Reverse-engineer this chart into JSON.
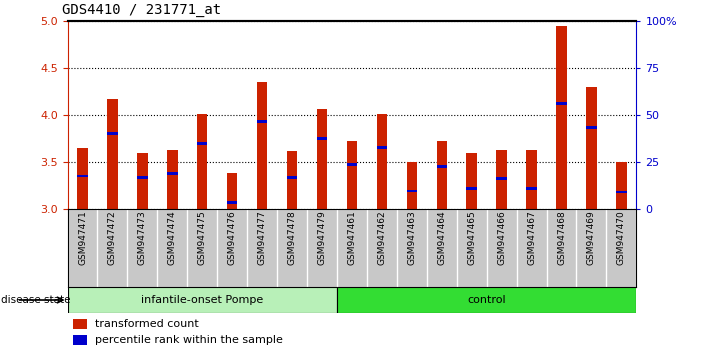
{
  "title": "GDS4410 / 231771_at",
  "samples": [
    "GSM947471",
    "GSM947472",
    "GSM947473",
    "GSM947474",
    "GSM947475",
    "GSM947476",
    "GSM947477",
    "GSM947478",
    "GSM947479",
    "GSM947461",
    "GSM947462",
    "GSM947463",
    "GSM947464",
    "GSM947465",
    "GSM947466",
    "GSM947467",
    "GSM947468",
    "GSM947469",
    "GSM947470"
  ],
  "bar_values": [
    3.65,
    4.17,
    3.6,
    3.63,
    4.01,
    3.38,
    4.35,
    3.62,
    4.06,
    3.72,
    4.01,
    3.5,
    3.72,
    3.6,
    3.63,
    3.63,
    4.95,
    4.3,
    3.5
  ],
  "blue_dot_values": [
    3.35,
    3.8,
    3.33,
    3.38,
    3.7,
    3.07,
    3.93,
    3.33,
    3.75,
    3.47,
    3.65,
    3.19,
    3.45,
    3.22,
    3.32,
    3.22,
    4.12,
    3.87,
    3.18
  ],
  "groups": [
    {
      "name": "infantile-onset Pompe",
      "start": 0,
      "end": 9,
      "color": "#b8f0b8"
    },
    {
      "name": "control",
      "start": 9,
      "end": 19,
      "color": "#33dd33"
    }
  ],
  "ylim": [
    3.0,
    5.0
  ],
  "yticks_left": [
    3.0,
    3.5,
    4.0,
    4.5,
    5.0
  ],
  "yticks_right_vals": [
    0,
    25,
    50,
    75,
    100
  ],
  "yticks_right_labels": [
    "0",
    "25",
    "50",
    "75",
    "100%"
  ],
  "bar_color": "#cc2200",
  "dot_color": "#0000cc",
  "background_color": "#c8c8c8",
  "plot_bg_color": "#ffffff",
  "ylabel_left_color": "#cc2200",
  "ylabel_right_color": "#0000cc",
  "legend_labels": [
    "transformed count",
    "percentile rank within the sample"
  ],
  "disease_state_label": "disease state",
  "bar_width": 0.35
}
